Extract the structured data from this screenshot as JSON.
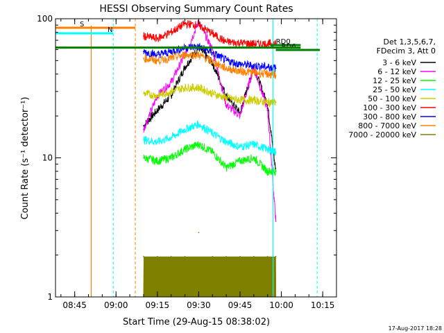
{
  "chart_data": {
    "type": "line",
    "title": "HESSI Observing Summary Count Rates",
    "xlabel": "Start Time (29-Aug-15 08:38:02)",
    "ylabel": "Count Rate (s⁻¹ detector⁻¹)",
    "y_log": true,
    "ylim": [
      1,
      100
    ],
    "xlim": [
      "08:38:02",
      "10:20:00"
    ],
    "x_ticks": [
      "08:45",
      "09:00",
      "09:15",
      "09:30",
      "09:45",
      "10:00",
      "10:15"
    ],
    "y_ticks": [
      "1",
      "10",
      "100"
    ],
    "legend_header": [
      "Det 1,3,5,6,7,",
      "FDecim 3, Att 0"
    ],
    "legend_position": "right",
    "series": [
      {
        "name": "3 - 6 keV",
        "color": "#000000",
        "x": [
          "09:10",
          "09:15",
          "09:20",
          "09:25",
          "09:30",
          "09:35",
          "09:40",
          "09:45",
          "09:50",
          "09:55",
          "09:58"
        ],
        "y": [
          17,
          22,
          28,
          45,
          62,
          48,
          28,
          21,
          45,
          24,
          8
        ]
      },
      {
        "name": "6 - 12 keV",
        "color": "#ff00ff",
        "x": [
          "09:10",
          "09:15",
          "09:20",
          "09:25",
          "09:30",
          "09:35",
          "09:40",
          "09:45",
          "09:50",
          "09:55",
          "09:58"
        ],
        "y": [
          16,
          28,
          35,
          55,
          95,
          60,
          24,
          20,
          45,
          22,
          3.5
        ]
      },
      {
        "name": "12 - 25 keV",
        "color": "#00ff00",
        "x": [
          "09:10",
          "09:15",
          "09:20",
          "09:25",
          "09:30",
          "09:35",
          "09:40",
          "09:45",
          "09:50",
          "09:55",
          "09:58"
        ],
        "y": [
          10,
          9.5,
          10,
          11.5,
          12.5,
          11,
          8.5,
          9.5,
          10,
          8,
          8
        ]
      },
      {
        "name": "25 - 50 keV",
        "color": "#00ffff",
        "x": [
          "09:10",
          "09:15",
          "09:20",
          "09:25",
          "09:30",
          "09:35",
          "09:40",
          "09:45",
          "09:50",
          "09:55",
          "09:58"
        ],
        "y": [
          13.5,
          13,
          14,
          16,
          17.5,
          15,
          13,
          12,
          12.5,
          11.5,
          11
        ]
      },
      {
        "name": "50 - 100 keV",
        "color": "#cccc00",
        "x": [
          "09:10",
          "09:15",
          "09:20",
          "09:25",
          "09:30",
          "09:35",
          "09:40",
          "09:45",
          "09:50",
          "09:55",
          "09:58"
        ],
        "y": [
          29,
          28,
          30,
          32,
          32,
          29,
          27,
          26,
          26,
          25,
          25
        ]
      },
      {
        "name": "100 - 300 keV",
        "color": "#ff0000",
        "x": [
          "09:10",
          "09:15",
          "09:20",
          "09:25",
          "09:30",
          "09:35",
          "09:40",
          "09:45",
          "09:50",
          "09:55",
          "09:58"
        ],
        "y": [
          75,
          72,
          80,
          92,
          90,
          78,
          68,
          67,
          66,
          66,
          66
        ]
      },
      {
        "name": "300 - 800 keV",
        "color": "#0000ff",
        "x": [
          "09:10",
          "09:15",
          "09:20",
          "09:25",
          "09:30",
          "09:35",
          "09:40",
          "09:45",
          "09:50",
          "09:55",
          "09:58"
        ],
        "y": [
          58,
          55,
          58,
          62,
          63,
          57,
          50,
          47,
          46,
          45,
          44
        ]
      },
      {
        "name": "800 - 7000 keV",
        "color": "#ff8000",
        "x": [
          "09:10",
          "09:15",
          "09:20",
          "09:25",
          "09:30",
          "09:35",
          "09:40",
          "09:45",
          "09:50",
          "09:55",
          "09:58"
        ],
        "y": [
          52,
          50,
          52,
          55,
          55,
          49,
          44,
          42,
          41,
          40,
          39
        ]
      },
      {
        "name": "7000 - 20000 keV",
        "color": "#808000",
        "x": [
          "09:10",
          "09:15",
          "09:20",
          "09:25",
          "09:30",
          "09:35",
          "09:40",
          "09:45",
          "09:50",
          "09:55",
          "09:58"
        ],
        "y": [
          1.95,
          1.95,
          1.95,
          1.95,
          2.9,
          1.95,
          1.95,
          1.95,
          1.95,
          1.95,
          1.95
        ]
      }
    ],
    "flags": [
      {
        "label": "S",
        "color": "#ff8000",
        "x_start": "08:38:02",
        "x_end": "09:07"
      },
      {
        "label": "N",
        "color": "#00ffff",
        "x_start": "08:38:02",
        "x_end": "08:59"
      },
      {
        "label": "RD0",
        "color": "#008000",
        "x_start": "09:56",
        "x_end": "10:07"
      },
      {
        "label": "RD6",
        "color": "#008000",
        "x_start": "09:58",
        "x_end": "10:14"
      }
    ],
    "grid": false
  },
  "footer": {
    "date": "17-Aug-2017 18:28"
  }
}
